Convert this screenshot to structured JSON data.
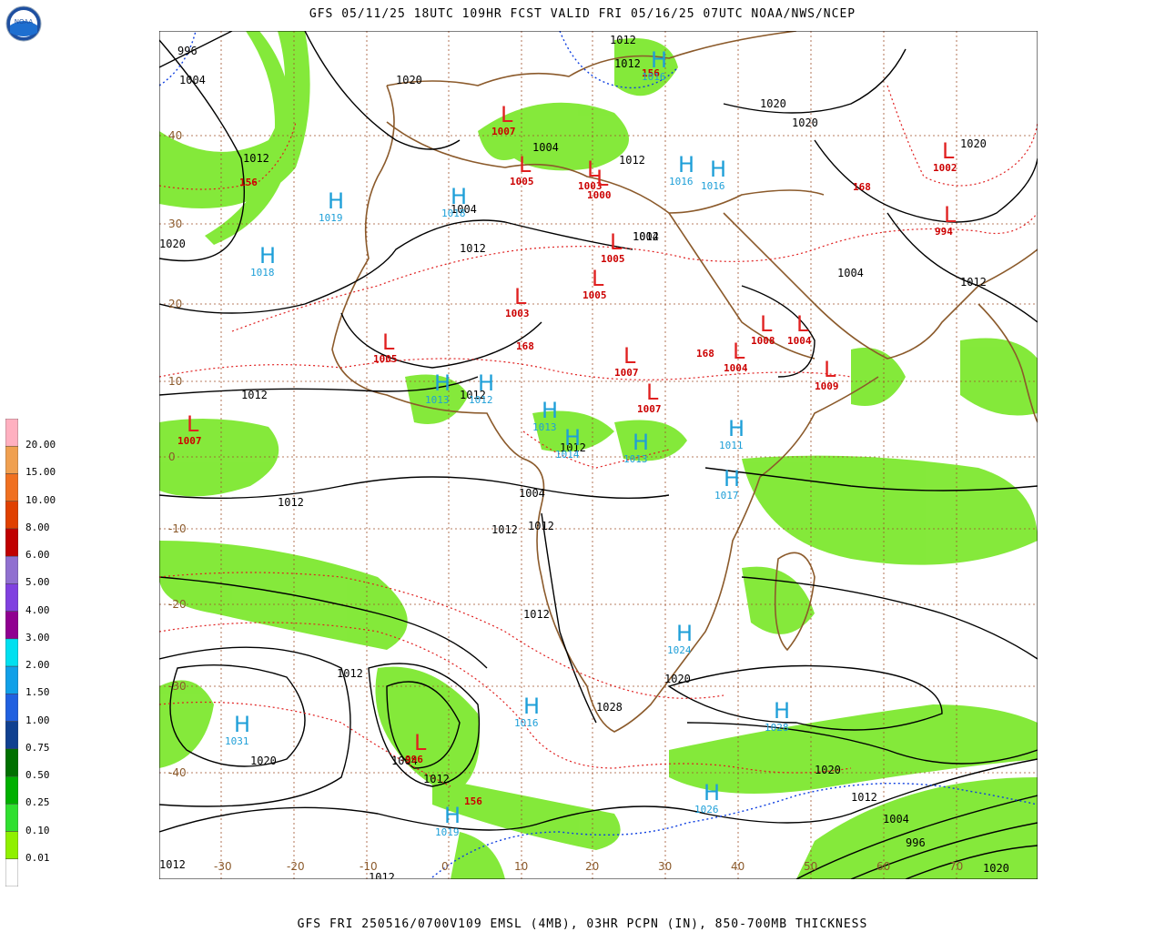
{
  "header": {
    "top_title": "GFS 05/11/25 18UTC 109HR FCST VALID FRI 05/16/25 07UTC NOAA/NWS/NCEP",
    "bottom_title": "GFS FRI 250516/0700V109 EMSL (4MB), 03HR PCPN (IN), 850-700MB THICKNESS"
  },
  "logo": {
    "icon": "noaa-logo-icon",
    "text": "NOAA"
  },
  "legend": {
    "labels": [
      "20.00",
      "15.00",
      "10.00",
      "8.00",
      "6.00",
      "5.00",
      "4.00",
      "3.00",
      "2.00",
      "1.50",
      "1.00",
      "0.75",
      "0.50",
      "0.25",
      "0.10",
      "0.01"
    ],
    "colors": [
      "#ffb0c0",
      "#f0a050",
      "#f07020",
      "#e04000",
      "#c00000",
      "#9070d0",
      "#8040e0",
      "#900090",
      "#00e0f0",
      "#10a0e8",
      "#2060e0",
      "#104090",
      "#007000",
      "#00b000",
      "#30e030",
      "#90f000",
      "#ffffff"
    ]
  },
  "axes": {
    "lon_labels": [
      "-30",
      "-20",
      "-10",
      "0",
      "10",
      "20",
      "30",
      "40",
      "50",
      "60",
      "70"
    ],
    "lat_labels": [
      "40",
      "30",
      "20",
      "10",
      "0",
      "-10",
      "-20",
      "-30",
      "-40"
    ]
  },
  "centers": [
    {
      "type": "H",
      "value": "1019"
    },
    {
      "type": "H",
      "value": "1018"
    },
    {
      "type": "H",
      "value": "1018"
    },
    {
      "type": "L",
      "value": "1007"
    },
    {
      "type": "L",
      "value": "1003"
    },
    {
      "type": "L",
      "value": "1000"
    },
    {
      "type": "H",
      "value": "1016"
    },
    {
      "type": "H",
      "value": "1016"
    },
    {
      "type": "H",
      "value": "1016"
    },
    {
      "type": "L",
      "value": "1005"
    },
    {
      "type": "L",
      "value": "1002"
    },
    {
      "type": "L",
      "value": "994"
    },
    {
      "type": "L",
      "value": "1005"
    },
    {
      "type": "L",
      "value": "1005"
    },
    {
      "type": "L",
      "value": "1003"
    },
    {
      "type": "L",
      "value": "1005"
    },
    {
      "type": "L",
      "value": "1007"
    },
    {
      "type": "L",
      "value": "1007"
    },
    {
      "type": "L",
      "value": "1008"
    },
    {
      "type": "L",
      "value": "1004"
    },
    {
      "type": "L",
      "value": "1004"
    },
    {
      "type": "L",
      "value": "1009"
    },
    {
      "type": "H",
      "value": "1013"
    },
    {
      "type": "H",
      "value": "1012"
    },
    {
      "type": "H",
      "value": "1013"
    },
    {
      "type": "H",
      "value": "1014"
    },
    {
      "type": "H",
      "value": "1013"
    },
    {
      "type": "H",
      "value": "1011"
    },
    {
      "type": "H",
      "value": "1017"
    },
    {
      "type": "L",
      "value": "1007"
    },
    {
      "type": "H",
      "value": "1024"
    },
    {
      "type": "H",
      "value": "1031"
    },
    {
      "type": "H",
      "value": "1016"
    },
    {
      "type": "H",
      "value": "1028"
    },
    {
      "type": "H",
      "value": "1026"
    },
    {
      "type": "H",
      "value": "1019"
    },
    {
      "type": "L",
      "value": "996"
    }
  ],
  "isobar_labels": [
    "996",
    "1004",
    "1020",
    "1012",
    "1012",
    "1020",
    "1020",
    "1012",
    "1004",
    "1012",
    "1012",
    "1004",
    "1004",
    "1020",
    "1012",
    "1004",
    "1012",
    "1012",
    "1012",
    "1012",
    "1012",
    "1004",
    "1012",
    "1012",
    "1012",
    "1012",
    "1020",
    "1028",
    "1020",
    "1004",
    "1012",
    "1020",
    "1012",
    "1004",
    "996",
    "1020",
    "1012",
    "1012",
    "1020"
  ],
  "thickness_labels": [
    "156",
    "156",
    "168",
    "168",
    "168",
    "156"
  ]
}
